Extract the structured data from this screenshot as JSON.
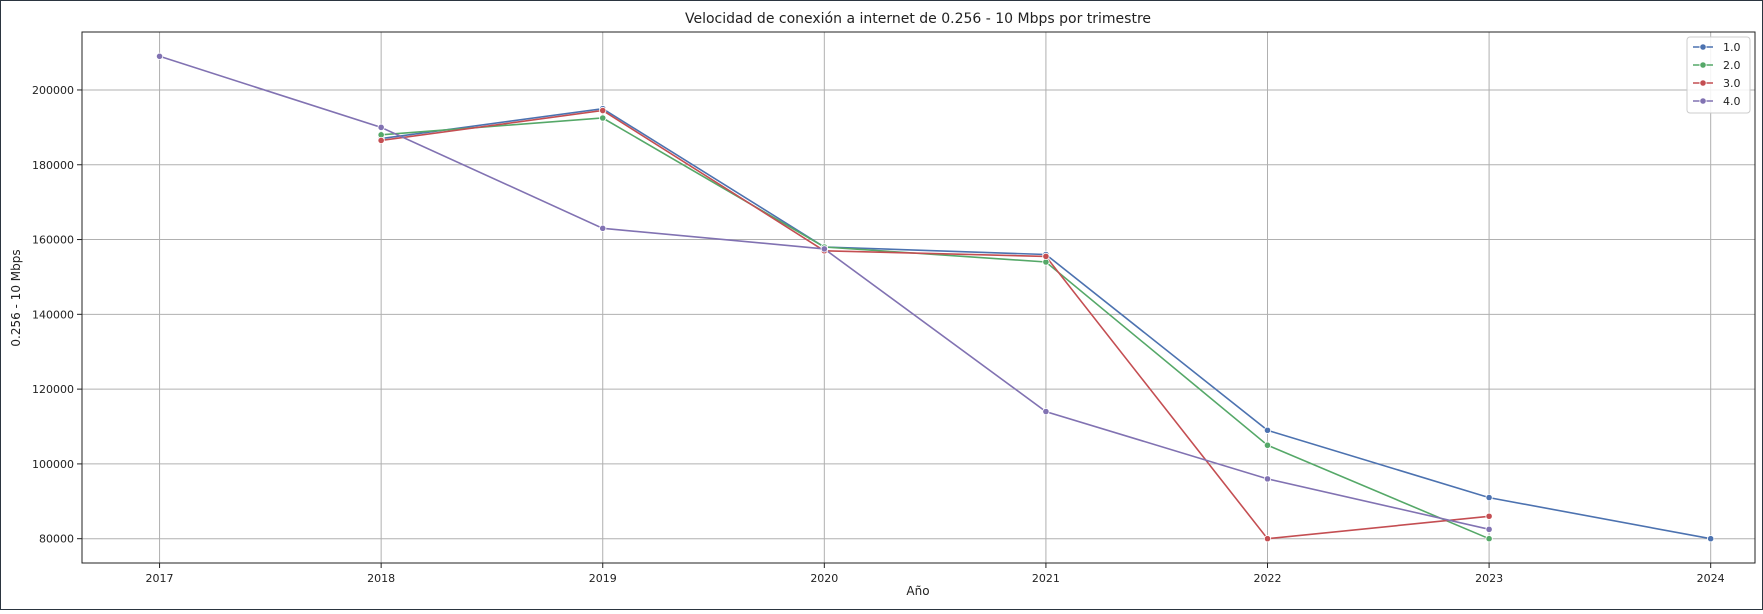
{
  "chart_data": {
    "type": "line",
    "title": "Velocidad de conexión a internet de 0.256 - 10 Mbps por trimestre",
    "xlabel": "Año",
    "ylabel": "0.256 - 10 Mbps",
    "xlim": [
      2016.65,
      2024.2
    ],
    "ylim": [
      73500,
      215500
    ],
    "xticks": [
      "2017",
      "2018",
      "2019",
      "2020",
      "2021",
      "2022",
      "2023",
      "2024"
    ],
    "yticks": [
      "80000",
      "100000",
      "120000",
      "140000",
      "160000",
      "180000",
      "200000"
    ],
    "grid": true,
    "legend_position": "top-right",
    "series": [
      {
        "name": "1.0",
        "color": "#4c72b0",
        "x": [
          2018,
          2019,
          2020,
          2021,
          2022,
          2023,
          2024
        ],
        "y": [
          187000,
          195000,
          158000,
          156000,
          109000,
          91000,
          80000
        ]
      },
      {
        "name": "2.0",
        "color": "#55a868",
        "x": [
          2018,
          2019,
          2020,
          2021,
          2022,
          2023
        ],
        "y": [
          188000,
          192500,
          158000,
          154000,
          105000,
          80000
        ]
      },
      {
        "name": "3.0",
        "color": "#c44e52",
        "x": [
          2018,
          2019,
          2020,
          2021,
          2022,
          2023
        ],
        "y": [
          186500,
          194500,
          157000,
          155500,
          80000,
          86000
        ]
      },
      {
        "name": "4.0",
        "color": "#8172b2",
        "x": [
          2017,
          2018,
          2019,
          2020,
          2021,
          2022,
          2023
        ],
        "y": [
          209000,
          190000,
          163000,
          157500,
          114000,
          96000,
          82500
        ]
      }
    ]
  }
}
